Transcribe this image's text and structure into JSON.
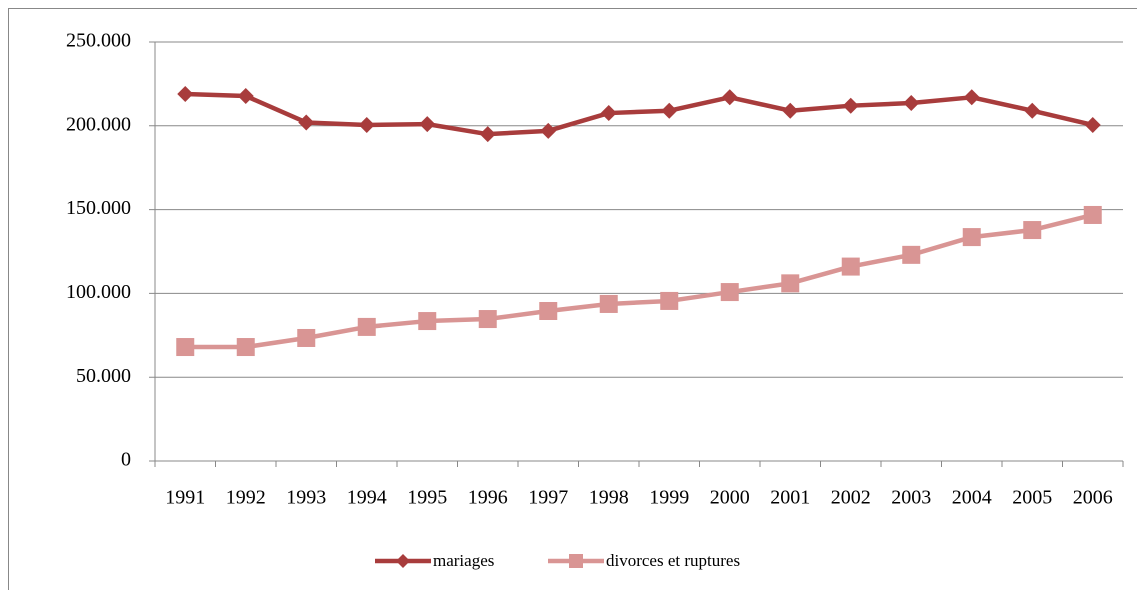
{
  "chart_data": {
    "type": "line",
    "categories": [
      "1991",
      "1992",
      "1993",
      "1994",
      "1995",
      "1996",
      "1997",
      "1998",
      "1999",
      "2000",
      "2001",
      "2002",
      "2003",
      "2004",
      "2005",
      "2006"
    ],
    "series": [
      {
        "name": "mariages",
        "color": "#a83c3c",
        "marker": "diamond",
        "values": [
          219000,
          217800,
          202000,
          200500,
          201000,
          195000,
          197000,
          207600,
          209000,
          217000,
          209000,
          212000,
          213600,
          217000,
          209000,
          200500
        ]
      },
      {
        "name": "divorces et ruptures",
        "color": "#d99594",
        "marker": "square",
        "values": [
          68000,
          68000,
          73400,
          80000,
          83500,
          84700,
          89500,
          93700,
          95500,
          100800,
          106000,
          116000,
          123000,
          133600,
          137800,
          146800
        ]
      }
    ],
    "ylim": [
      0,
      250000
    ],
    "yticks": [
      0,
      {
        "value": 50000,
        "label": "50.000"
      },
      {
        "value": 100000,
        "label": "100.000"
      },
      {
        "value": 150000,
        "label": "150.000"
      },
      {
        "value": 200000,
        "label": "200.000"
      },
      {
        "value": 250000,
        "label": "250.000"
      }
    ],
    "grid": true,
    "legend": "bottom"
  }
}
